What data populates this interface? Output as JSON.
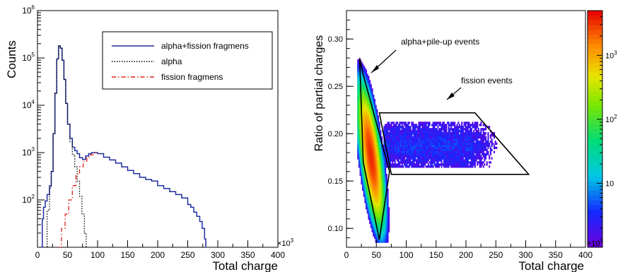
{
  "chart_data": [
    {
      "type": "line",
      "xlabel": "Total charge",
      "ylabel": "Counts",
      "x_multiplier": "×10",
      "x_multiplier_exp": "3",
      "xlim": [
        0,
        400
      ],
      "ylim": [
        10,
        1000000
      ],
      "y_scale": "log",
      "x_ticks": [
        "0",
        "50",
        "100",
        "150",
        "200",
        "250",
        "300",
        "350",
        "400"
      ],
      "y_ticks": [
        {
          "value": 100,
          "base": "10",
          "exp": "2"
        },
        {
          "value": 1000,
          "base": "10",
          "exp": "3"
        },
        {
          "value": 10000,
          "base": "10",
          "exp": "4"
        },
        {
          "value": 100000,
          "base": "10",
          "exp": "5"
        },
        {
          "value": 1000000,
          "base": "10",
          "exp": "6"
        }
      ],
      "legend": {
        "placement": "top-right",
        "entries": [
          {
            "label": "alpha+fission fragmens",
            "color": "#1f2f9f",
            "style": "solid"
          },
          {
            "label": "alpha",
            "color": "#000000",
            "style": "dotted"
          },
          {
            "label": "fission fragmens",
            "color": "#e0201b",
            "style": "dashdot"
          }
        ]
      },
      "series": [
        {
          "name": "alpha+fission fragmens",
          "x": [
            5,
            8,
            10,
            13,
            16,
            20,
            23,
            26,
            29,
            32,
            35,
            38,
            41,
            44,
            47,
            50,
            54,
            58,
            62,
            66,
            70,
            75,
            80,
            85,
            90,
            95,
            100,
            110,
            120,
            130,
            140,
            150,
            160,
            170,
            180,
            190,
            200,
            210,
            220,
            230,
            240,
            250,
            255,
            260,
            265,
            270,
            274,
            278,
            280
          ],
          "y": [
            10,
            40,
            70,
            95,
            130,
            200,
            400,
            2500,
            18000,
            95000,
            180000,
            160000,
            90000,
            35000,
            11000,
            4000,
            2000,
            1300,
            1100,
            950,
            780,
            720,
            850,
            950,
            1000,
            1000,
            950,
            800,
            700,
            600,
            500,
            420,
            360,
            300,
            270,
            250,
            200,
            175,
            150,
            130,
            110,
            80,
            70,
            55,
            45,
            35,
            25,
            15,
            8
          ]
        },
        {
          "name": "alpha",
          "x": [
            12,
            16,
            20,
            23,
            26,
            29,
            32,
            35,
            38,
            41,
            44,
            47,
            50,
            54,
            58,
            62,
            66,
            70,
            74,
            78,
            81
          ],
          "y": [
            8,
            60,
            180,
            400,
            2500,
            18000,
            95000,
            180000,
            160000,
            90000,
            35000,
            11000,
            4000,
            1700,
            900,
            500,
            250,
            120,
            50,
            20,
            8
          ]
        },
        {
          "name": "fission fragmens",
          "x": [
            34,
            40,
            46,
            52,
            58,
            64,
            70,
            76,
            82,
            88,
            94,
            100
          ],
          "y": [
            10,
            25,
            50,
            100,
            200,
            350,
            500,
            650,
            800,
            900,
            980,
            1000
          ]
        }
      ]
    },
    {
      "type": "heatmap",
      "xlabel": "Total charge",
      "ylabel": "Ratio of partial charges",
      "x_multiplier": "×10",
      "x_multiplier_exp": "3",
      "xlim": [
        0,
        400
      ],
      "ylim": [
        0.08,
        0.33
      ],
      "x_ticks": [
        "0",
        "50",
        "100",
        "150",
        "200",
        "250",
        "300",
        "350",
        "400"
      ],
      "y_ticks": [
        "0.10",
        "0.15",
        "0.20",
        "0.25",
        "0.30"
      ],
      "colorbar": {
        "scale": "log",
        "range": [
          1,
          5000
        ],
        "ticks": [
          {
            "value": 10,
            "label": "10"
          },
          {
            "value": 100,
            "base": "10",
            "exp": "2"
          },
          {
            "value": 1000,
            "base": "10",
            "exp": "3"
          }
        ]
      },
      "annotations": [
        {
          "text": "alpha+pile-up events"
        },
        {
          "text": "fission events"
        }
      ],
      "regions": [
        {
          "name": "alpha+pile-up events",
          "polygon": [
            [
              22,
              0.28
            ],
            [
              28,
              0.262
            ],
            [
              40,
              0.235
            ],
            [
              72,
              0.16
            ],
            [
              55,
              0.088
            ],
            [
              28,
              0.17
            ]
          ]
        },
        {
          "name": "fission events",
          "polygon": [
            [
              55,
              0.222
            ],
            [
              215,
              0.222
            ],
            [
              305,
              0.157
            ],
            [
              75,
              0.157
            ]
          ]
        }
      ]
    }
  ]
}
